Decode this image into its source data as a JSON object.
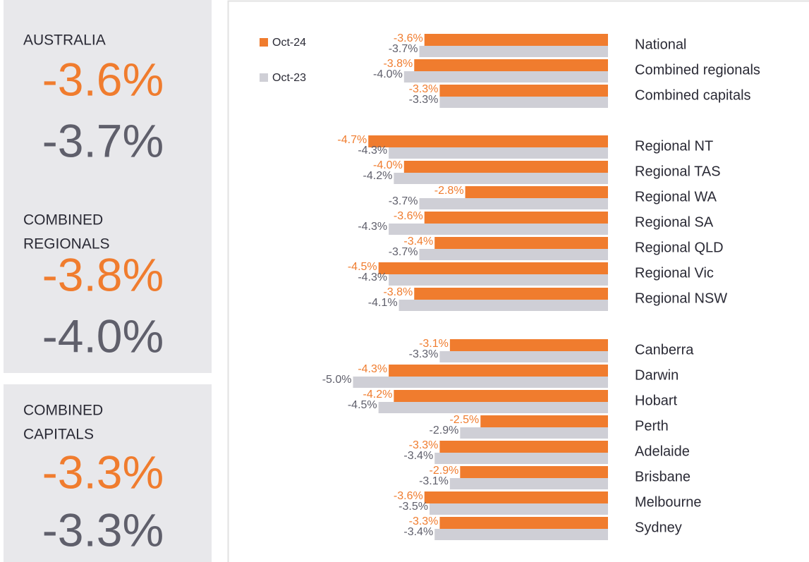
{
  "panels": [
    {
      "title": [
        "AUSTRALIA"
      ],
      "current": "-3.6%",
      "previous": "-3.7%"
    },
    {
      "title": [
        "COMBINED",
        "REGIONALS"
      ],
      "current": "-3.8%",
      "previous": "-4.0%"
    },
    {
      "title": [
        "COMBINED",
        "CAPITALS"
      ],
      "current": "-3.3%",
      "previous": "-3.3%"
    }
  ],
  "chart_data": {
    "type": "bar",
    "orientation": "horizontal",
    "categories": [
      "National",
      "Combined regionals",
      "Combined capitals",
      "Regional NT",
      "Regional TAS",
      "Regional WA",
      "Regional SA",
      "Regional QLD",
      "Regional Vic",
      "Regional NSW",
      "Canberra",
      "Darwin",
      "Hobart",
      "Perth",
      "Adelaide",
      "Brisbane",
      "Melbourne",
      "Sydney"
    ],
    "series": [
      {
        "name": "Oct-24",
        "color": "#f07c2e",
        "values": [
          -3.6,
          -3.8,
          -3.3,
          -4.7,
          -4.0,
          -2.8,
          -3.6,
          -3.4,
          -4.5,
          -3.8,
          -3.1,
          -4.3,
          -4.2,
          -2.5,
          -3.3,
          -2.9,
          -3.6,
          -3.3
        ],
        "value_labels": [
          "-3.6%",
          "-3.8%",
          "-3.3%",
          "-4.7%",
          "-4.0%",
          "-2.8%",
          "-3.6%",
          "-3.4%",
          "-4.5%",
          "-3.8%",
          "-3.1%",
          "-4.3%",
          "-4.2%",
          "-2.5%",
          "-3.3%",
          "-2.9%",
          "-3.6%",
          "-3.3%"
        ]
      },
      {
        "name": "Oct-23",
        "color": "#cfcfd6",
        "values": [
          -3.7,
          -4.0,
          -3.3,
          -4.3,
          -4.2,
          -3.7,
          -4.3,
          -3.7,
          -4.3,
          -4.1,
          -3.3,
          -5.0,
          -4.5,
          -2.9,
          -3.4,
          -3.1,
          -3.5,
          -3.4
        ],
        "value_labels": [
          "-3.7%",
          "-4.0%",
          "-3.3%",
          "-4.3%",
          "-4.2%",
          "-3.7%",
          "-4.3%",
          "-3.7%",
          "-4.3%",
          "-4.1%",
          "-3.3%",
          "-5.0%",
          "-4.5%",
          "-2.9%",
          "-3.4%",
          "-3.1%",
          "-3.5%",
          "-3.4%"
        ]
      }
    ]
  }
}
